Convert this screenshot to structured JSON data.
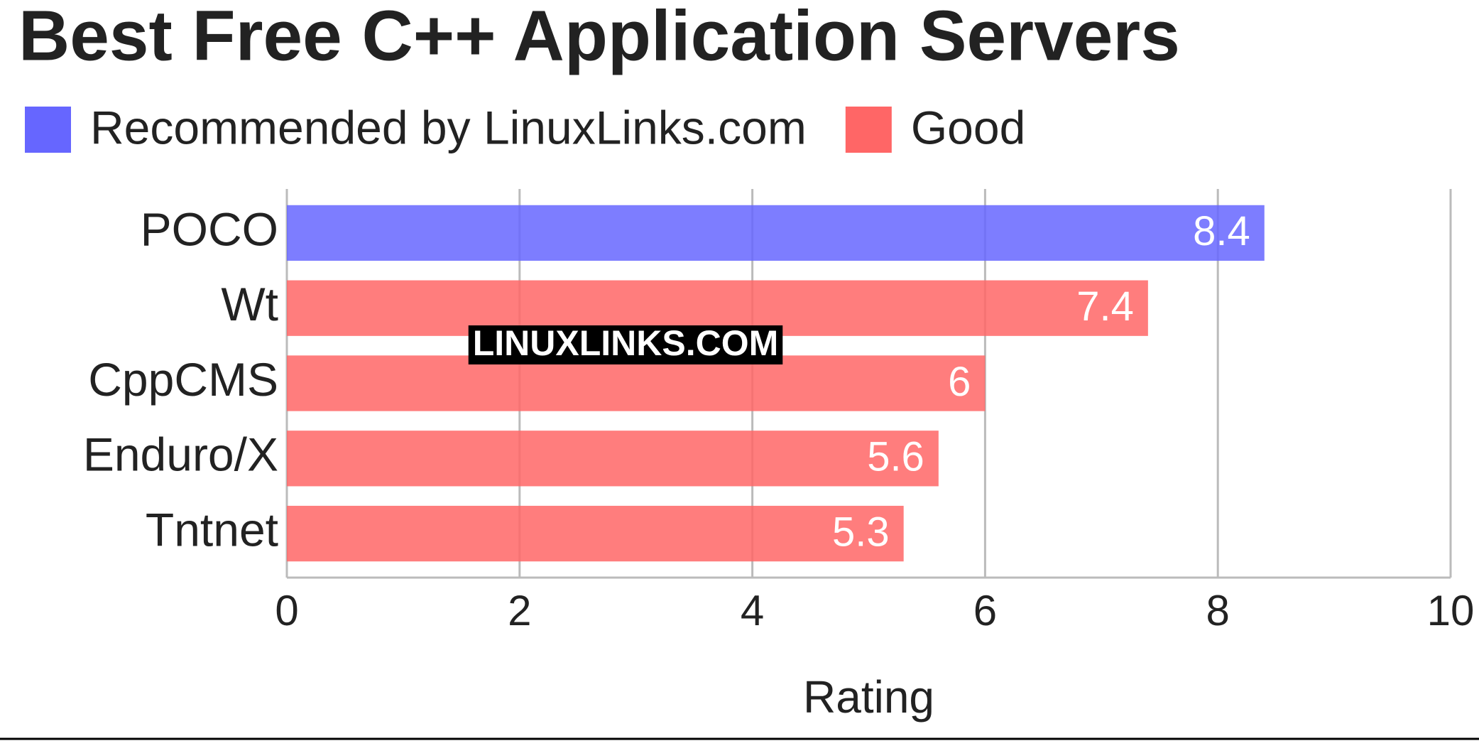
{
  "chart_data": {
    "type": "bar",
    "orientation": "horizontal",
    "title": "Best Free C++ Application Servers",
    "categories": [
      "POCO",
      "Wt",
      "CppCMS",
      "Enduro/X",
      "Tntnet"
    ],
    "series": [
      {
        "name": "Recommended by LinuxLinks.com",
        "color": "#6666ff",
        "values": [
          8.4,
          null,
          null,
          null,
          null
        ]
      },
      {
        "name": "Good",
        "color": "#ff6666",
        "values": [
          null,
          7.4,
          6,
          5.6,
          5.3
        ]
      }
    ],
    "xlabel": "Rating",
    "xlim": [
      0,
      10
    ],
    "xticks": [
      0,
      2,
      4,
      6,
      8,
      10
    ],
    "grid": true,
    "legend": "top-left",
    "watermark": "LINUXLINKS.COM"
  }
}
